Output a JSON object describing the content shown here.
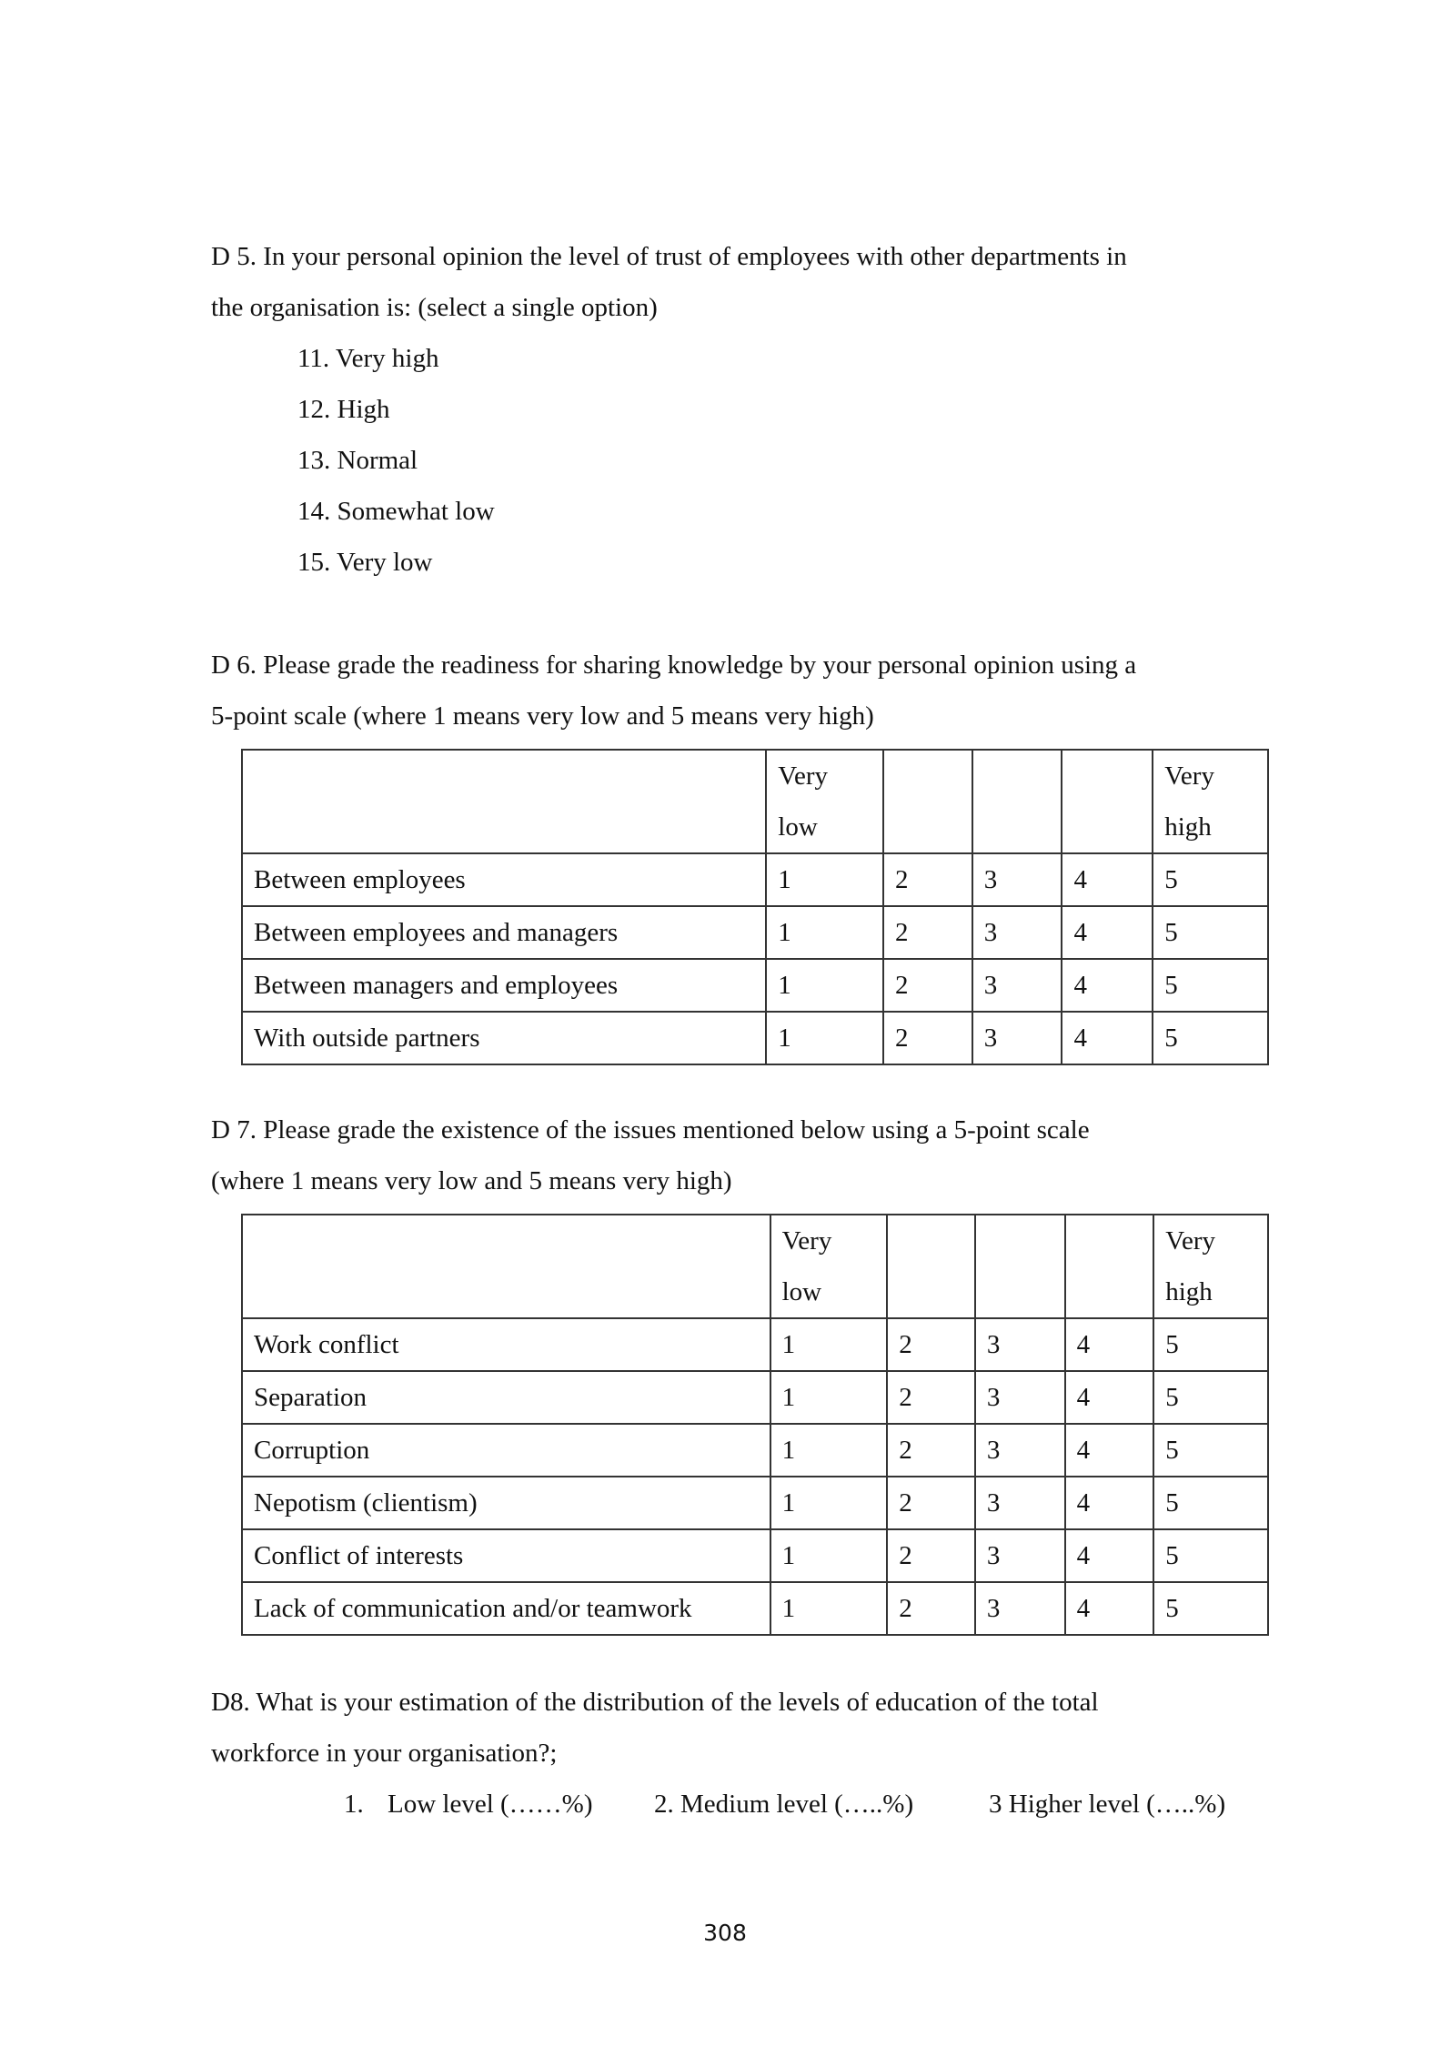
{
  "d5": {
    "question_line1": "D 5. In your personal opinion the level of trust of employees with other departments in",
    "question_line2": "the organisation is:     (select a single option)",
    "options": [
      "11. Very high",
      "12. High",
      "13. Normal",
      "14. Somewhat low",
      "15. Very low"
    ]
  },
  "d6": {
    "question_line1": "D 6. Please grade the readiness for sharing knowledge by your personal opinion using a",
    "question_line2": "5-point scale (where 1 means very low and 5 means very high)",
    "header": {
      "low_1": "Very",
      "low_2": "low",
      "high_1": "Very",
      "high_2": "high"
    },
    "rows": [
      {
        "label": "Between employees",
        "values": [
          "1",
          "2",
          "3",
          "4",
          "5"
        ]
      },
      {
        "label": "Between employees and managers",
        "values": [
          "1",
          "2",
          "3",
          "4",
          "5"
        ]
      },
      {
        "label": "Between managers and employees",
        "values": [
          "1",
          "2",
          "3",
          "4",
          "5"
        ]
      },
      {
        "label": "With outside partners",
        "values": [
          "1",
          "2",
          "3",
          "4",
          "5"
        ]
      }
    ]
  },
  "d7": {
    "question_line1": "D 7. Please grade the existence of the issues mentioned below using a 5-point scale",
    "question_line2": "(where 1 means very low and 5 means very high)",
    "header": {
      "low_1": "Very",
      "low_2": "low",
      "high_1": "Very",
      "high_2": "high"
    },
    "rows": [
      {
        "label": "Work conflict",
        "values": [
          "1",
          "2",
          "3",
          "4",
          "5"
        ]
      },
      {
        "label": "Separation",
        "values": [
          "1",
          "2",
          "3",
          "4",
          "5"
        ]
      },
      {
        "label": "Corruption",
        "values": [
          "1",
          "2",
          "3",
          "4",
          "5"
        ]
      },
      {
        "label": "Nepotism (clientism)",
        "values": [
          "1",
          "2",
          "3",
          "4",
          "5"
        ]
      },
      {
        "label": "Conflict of interests",
        "values": [
          "1",
          "2",
          "3",
          "4",
          "5"
        ]
      },
      {
        "label": "Lack of communication and/or teamwork",
        "values": [
          "1",
          "2",
          "3",
          "4",
          "5"
        ]
      }
    ]
  },
  "d8": {
    "question_line1": "D8. What is your estimation of the distribution of the  levels of education of the total",
    "question_line2": "workforce in your organisation?;",
    "option1_num": "1.",
    "option1": "Low level  (……%)",
    "option2": "2. Medium level (…..%)",
    "option3": "3 Higher level (…..%)"
  },
  "page_number": "308"
}
